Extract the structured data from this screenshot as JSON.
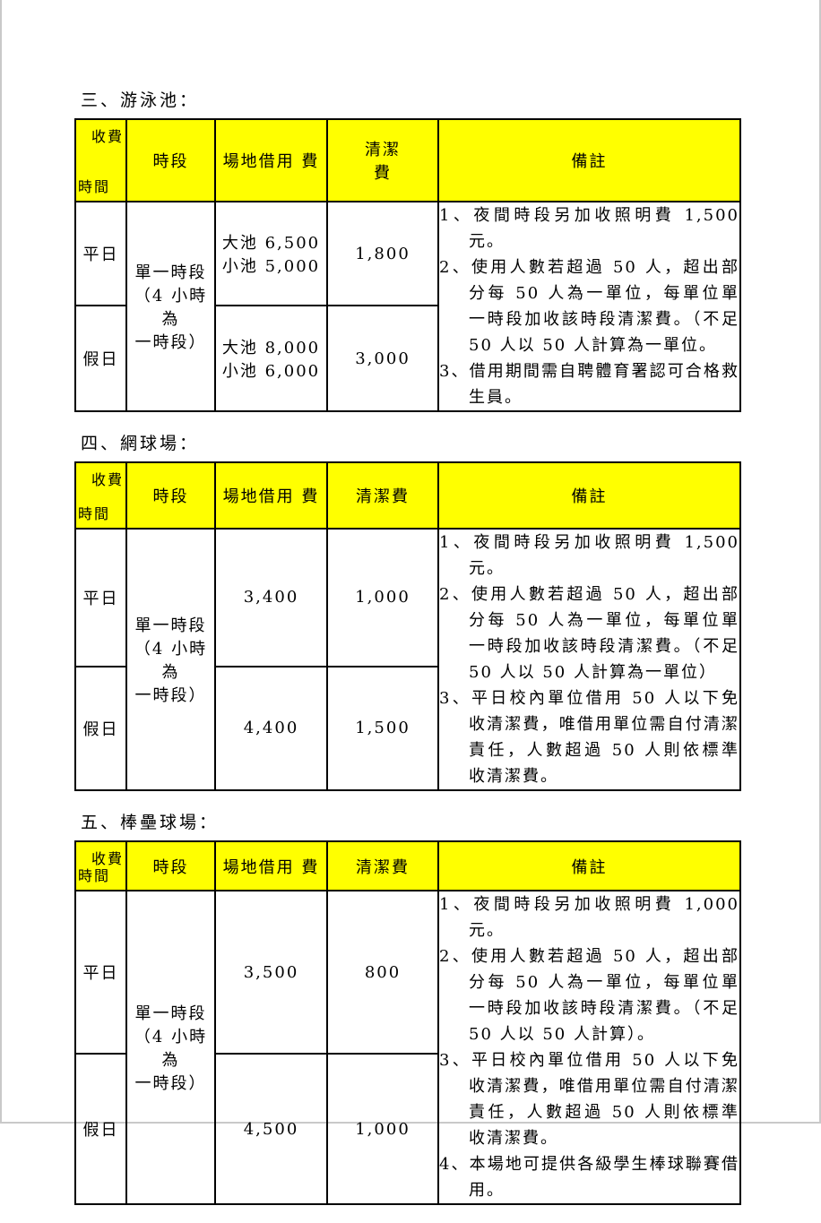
{
  "page": {
    "colors": {
      "header_bg": "#ffff00",
      "table_border": "#000000",
      "page_border": "#c9c9c9"
    },
    "sections": [
      {
        "title": "三、游泳池：",
        "header": {
          "corner_top": "收費",
          "corner_bottom": "時間",
          "col_slot": "時段",
          "col_fee": "場地借用 費",
          "col_clean": "清潔\n費",
          "col_remark": "備註"
        },
        "slot": "單一時段\n（4 小時為\n一時段）",
        "rows": [
          {
            "time": "平日",
            "fee": "大池 6,500\n小池 5,000",
            "clean": "1,800"
          },
          {
            "time": "假日",
            "fee": "大池 8,000\n小池 6,000",
            "clean": "3,000"
          }
        ],
        "remarks": [
          "1、夜間時段另加收照明費 1,500 元。",
          "2、使用人數若超過 50 人，超出部分每 50 人為一單位，每單位單一時段加收該時段清潔費。（不足 50 人以 50 人計算為一單位。",
          "3、借用期間需自聘體育署認可合格救生員。"
        ]
      },
      {
        "title": "四、網球場：",
        "header": {
          "corner_top": "收費",
          "corner_bottom": "時間",
          "col_slot": "時段",
          "col_fee": "場地借用 費",
          "col_clean": "清潔費",
          "col_remark": "備註"
        },
        "slot": "單一時段\n（4 小時為\n一時段）",
        "rows": [
          {
            "time": "平日",
            "fee": "3,400",
            "clean": "1,000"
          },
          {
            "time": "假日",
            "fee": "4,400",
            "clean": "1,500"
          }
        ],
        "remarks": [
          "1、夜間時段另加收照明費 1,500 元。",
          "2、使用人數若超過 50 人，超出部分每 50 人為一單位，每單位單一時段加收該時段清潔費。（不足 50 人以 50 人計算為一單位）",
          "3、平日校內單位借用 50 人以下免收清潔費，唯借用單位需自付清潔責任，人數超過 50 人則依標準收清潔費。"
        ]
      },
      {
        "title": "五、棒壘球場：",
        "header": {
          "corner_top": "收費",
          "corner_bottom": "時間",
          "col_slot": "時段",
          "col_fee": "場地借用 費",
          "col_clean": "清潔費",
          "col_remark": "備註"
        },
        "slot": "單一時段\n（4 小時為\n一時段）",
        "rows": [
          {
            "time": "平日",
            "fee": "3,500",
            "clean": "800"
          },
          {
            "time": "假日",
            "fee": "4,500",
            "clean": "1,000"
          }
        ],
        "remarks": [
          "1、夜間時段另加收照明費 1,000 元。",
          "2、使用人數若超過 50 人，超出部分每 50 人為一單位，每單位單一時段加收該時段清潔費。（不足 50 人以 50 人計算）。",
          "3、平日校內單位借用 50 人以下免收清潔費，唯借用單位需自付清潔責任，人數超過 50 人則依標準收清潔費。",
          "4、本場地可提供各級學生棒球聯賽借用。"
        ]
      }
    ]
  }
}
